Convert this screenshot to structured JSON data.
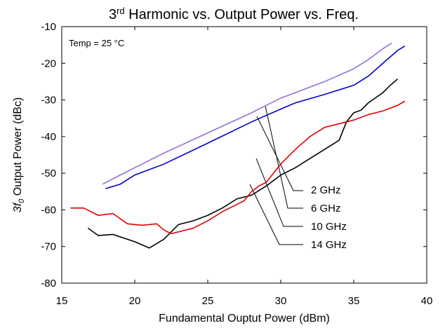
{
  "chart_data": {
    "type": "line",
    "title": [
      "3",
      "rd",
      " Harmonic vs. Output Power vs. Freq."
    ],
    "xlabel": "Fundamental Ouptut Power (dBm)",
    "ylabel": [
      "3f",
      "0",
      " Output Power (dBc)"
    ],
    "annotation": "Temp = 25 °C",
    "xlim": [
      15,
      40
    ],
    "xticks": [
      15,
      20,
      25,
      30,
      35,
      40
    ],
    "ylim": [
      -80,
      -10
    ],
    "yticks": [
      -80,
      -70,
      -60,
      -50,
      -40,
      -30,
      -20,
      -10
    ],
    "grid": false,
    "series": [
      {
        "name": "2 GHz",
        "color": "#9370db",
        "x": [
          17.8,
          19,
          20,
          22,
          25,
          28,
          30,
          33,
          35,
          36,
          37,
          37.6
        ],
        "values": [
          -53,
          -50.5,
          -48.5,
          -44.5,
          -39,
          -33.5,
          -29.5,
          -25,
          -21.5,
          -19,
          -16,
          -14.5
        ]
      },
      {
        "name": "6 GHz",
        "color": "#0000cc",
        "x": [
          18,
          19,
          20,
          22,
          25,
          28,
          30,
          31,
          33,
          35,
          36,
          37,
          38,
          38.5
        ],
        "values": [
          -54.2,
          -53,
          -50.5,
          -47.5,
          -41.8,
          -36,
          -32.5,
          -30.8,
          -28.5,
          -26,
          -23.5,
          -20,
          -16.5,
          -15.3
        ]
      },
      {
        "name": "10 GHz",
        "color": "#000000",
        "x": [
          16.8,
          17.5,
          18.5,
          20,
          21,
          22,
          23,
          24,
          25,
          26,
          27,
          28,
          29,
          30,
          31,
          32,
          33,
          34,
          34.5,
          35,
          35.5,
          36,
          37,
          37.5,
          38
        ],
        "values": [
          -65,
          -67,
          -66.7,
          -68.7,
          -70.4,
          -68,
          -64,
          -63,
          -61.5,
          -59.5,
          -57,
          -56,
          -53.5,
          -50.5,
          -48.5,
          -46,
          -43.5,
          -41,
          -36,
          -33.5,
          -32.8,
          -30.8,
          -28,
          -26,
          -24.3
        ]
      },
      {
        "name": "14 GHz",
        "color": "#e00000",
        "x": [
          15.6,
          16.5,
          17.5,
          18.5,
          19.5,
          20.5,
          21.5,
          22,
          22.5,
          24,
          25,
          26,
          27.5,
          28,
          28.5,
          29,
          30,
          31,
          32,
          33,
          34,
          35,
          36,
          37,
          38,
          38.5
        ],
        "values": [
          -59.5,
          -59.5,
          -61.5,
          -61,
          -63.8,
          -64.2,
          -63.8,
          -65.5,
          -66.5,
          -65,
          -63,
          -60.5,
          -57.5,
          -55,
          -53.5,
          -52.5,
          -47.5,
          -43.5,
          -40,
          -37.5,
          -36.5,
          -35.5,
          -34,
          -33,
          -31.5,
          -30.3
        ]
      }
    ]
  }
}
